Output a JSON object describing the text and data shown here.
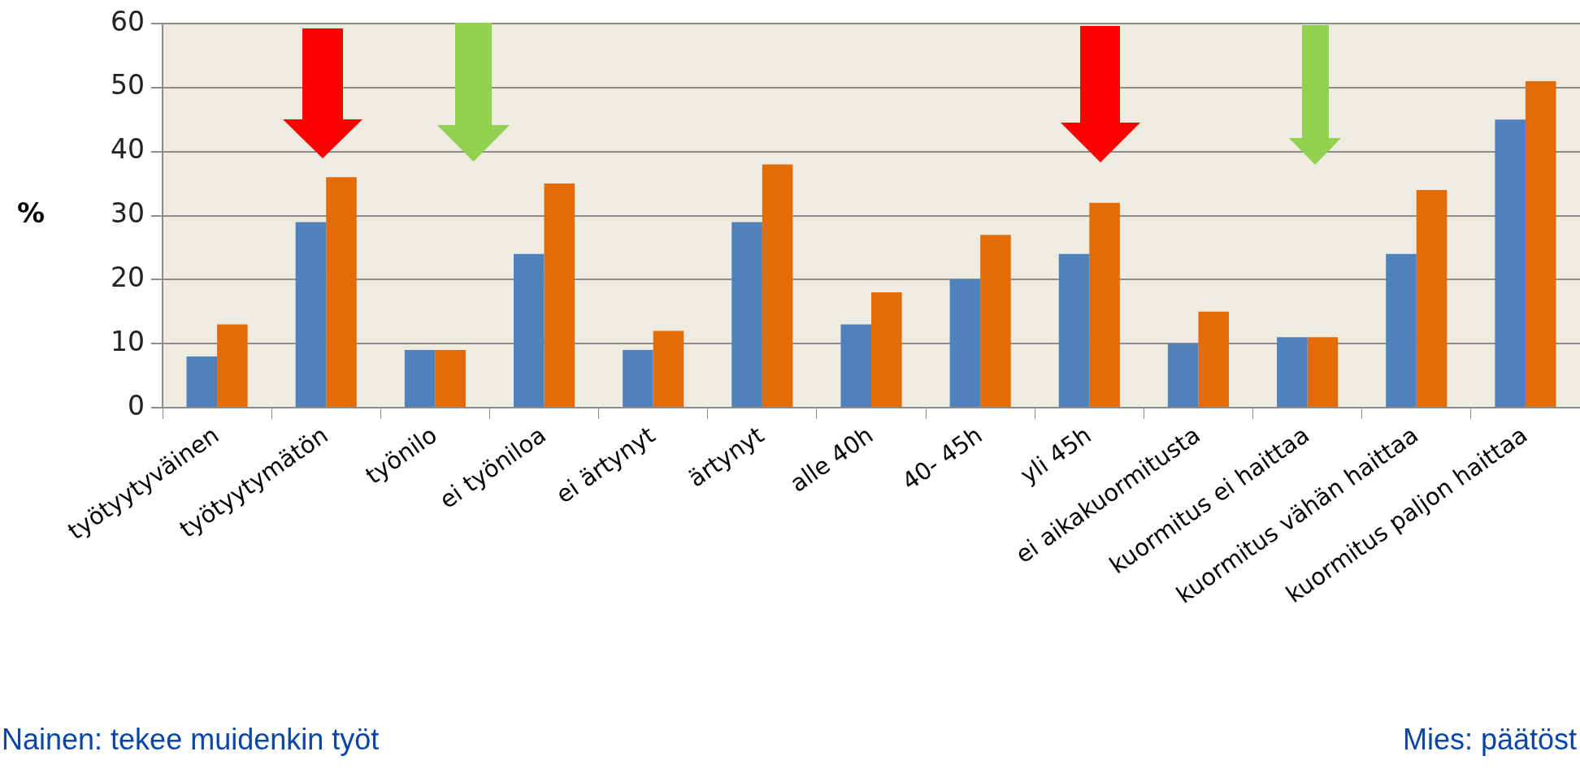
{
  "chart_data": {
    "type": "bar",
    "ylabel": "%",
    "categories": [
      "työtyytyväinen",
      "työtyytymätön",
      "työnilo",
      "ei työniloa",
      "ei ärtynyt",
      "ärtynyt",
      "alle 40h",
      "40- 45h",
      "yli 45h",
      "ei aikakuormitusta",
      "kuormitus ei haittaa",
      "kuormitus vähän haittaa",
      "kuormitus paljon haittaa"
    ],
    "series": [
      {
        "color": "#4f81bd",
        "values": [
          8,
          29,
          9,
          24,
          9,
          29,
          13,
          20,
          24,
          10,
          11,
          24,
          45
        ]
      },
      {
        "color": "#e36c09",
        "values": [
          13,
          36,
          9,
          35,
          12,
          38,
          18,
          27,
          32,
          15,
          11,
          34,
          51
        ]
      }
    ],
    "ylim": [
      0,
      60
    ],
    "yticks": [
      0,
      10,
      20,
      30,
      40,
      50,
      60
    ],
    "grid": "y",
    "legend": false,
    "annotations": [
      "Nainen: tekee muidenkin työt",
      "Mies: päätöst"
    ]
  }
}
